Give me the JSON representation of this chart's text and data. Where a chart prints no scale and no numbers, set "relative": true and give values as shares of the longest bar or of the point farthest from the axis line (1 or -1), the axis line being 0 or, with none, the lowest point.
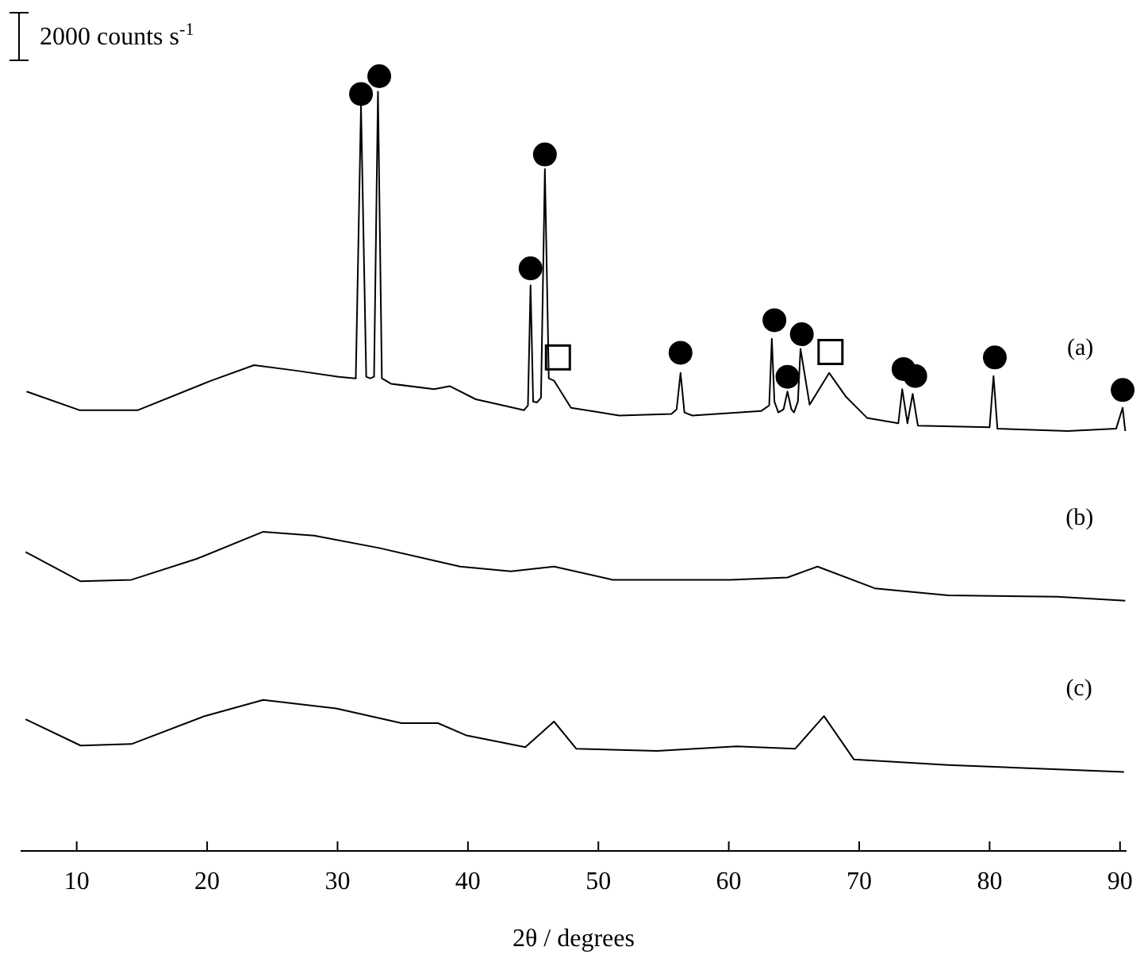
{
  "chart_data": {
    "type": "line",
    "relative": true,
    "xlabel": "2θ / degrees",
    "xlim": [
      5.7,
      90.5
    ],
    "xticks": [
      10,
      20,
      30,
      40,
      50,
      60,
      70,
      80,
      90
    ],
    "tick_labels": "x",
    "annotations": [
      "2000 counts s$^{-1}$"
    ],
    "series": [
      {
        "name": "(a)",
        "color": "#000000",
        "marker": "none",
        "x": [
          6.16,
          10.2,
          14.7,
          20.3,
          23.6,
          26.8,
          30.1,
          31.4,
          31.8,
          32.2,
          32.5,
          32.8,
          33.1,
          33.4,
          34.1,
          37.4,
          38.6,
          40.6,
          44.3,
          44.6,
          44.8,
          45.0,
          45.3,
          45.6,
          45.9,
          46.2,
          46.6,
          47.9,
          51.6,
          55.6,
          56.0,
          56.3,
          56.6,
          57.2,
          62.5,
          63.1,
          63.3,
          63.5,
          63.8,
          64.2,
          64.5,
          64.8,
          65.0,
          65.3,
          65.5,
          66.2,
          67.7,
          69.0,
          70.6,
          73.0,
          73.3,
          73.7,
          74.1,
          74.5,
          80.0,
          80.3,
          80.6,
          86.0,
          89.7,
          90.2,
          90.4
        ],
        "values": [
          0.593,
          0.569,
          0.569,
          0.607,
          0.627,
          0.62,
          0.612,
          0.61,
          0.962,
          0.612,
          0.61,
          0.612,
          0.98,
          0.61,
          0.603,
          0.596,
          0.6,
          0.583,
          0.569,
          0.575,
          0.73,
          0.58,
          0.579,
          0.585,
          0.88,
          0.61,
          0.607,
          0.572,
          0.562,
          0.564,
          0.57,
          0.617,
          0.566,
          0.562,
          0.568,
          0.575,
          0.661,
          0.58,
          0.566,
          0.57,
          0.593,
          0.57,
          0.566,
          0.58,
          0.648,
          0.576,
          0.617,
          0.586,
          0.559,
          0.552,
          0.596,
          0.552,
          0.59,
          0.549,
          0.547,
          0.613,
          0.545,
          0.542,
          0.545,
          0.572,
          0.542
        ]
      },
      {
        "name": "(b)",
        "color": "#000000",
        "marker": "none",
        "x": [
          6.08,
          10.3,
          14.2,
          19.2,
          24.3,
          28.2,
          33.2,
          39.4,
          43.3,
          46.6,
          51.1,
          60.1,
          64.5,
          66.8,
          71.2,
          76.8,
          85.2,
          90.4
        ],
        "values": [
          0.386,
          0.348,
          0.35,
          0.377,
          0.412,
          0.407,
          0.391,
          0.367,
          0.361,
          0.367,
          0.35,
          0.35,
          0.353,
          0.367,
          0.339,
          0.33,
          0.328,
          0.323
        ]
      },
      {
        "name": "(c)",
        "color": "#000000",
        "marker": "none",
        "x": [
          6.08,
          10.3,
          14.2,
          19.8,
          24.3,
          29.9,
          34.9,
          37.7,
          39.9,
          44.4,
          46.6,
          48.3,
          54.5,
          60.6,
          65.1,
          67.3,
          69.6,
          76.8,
          90.3
        ],
        "values": [
          0.17,
          0.136,
          0.138,
          0.174,
          0.195,
          0.184,
          0.165,
          0.165,
          0.149,
          0.134,
          0.167,
          0.132,
          0.129,
          0.135,
          0.132,
          0.174,
          0.118,
          0.111,
          0.102
        ]
      },
      {
        "type": "scatter",
        "color": "#000000",
        "marker": "circle",
        "x": [
          31.8,
          33.2,
          44.8,
          45.9,
          56.3,
          63.5,
          64.5,
          65.6,
          73.4,
          74.3,
          80.4,
          90.2
        ],
        "values": [
          0.977,
          1,
          0.752,
          0.899,
          0.643,
          0.685,
          0.612,
          0.667,
          0.622,
          0.613,
          0.637,
          0.595
        ]
      },
      {
        "type": "scatter",
        "color": "#000000",
        "marker": "square",
        "x": [
          46.9,
          67.8
        ],
        "values": [
          0.637,
          0.644
        ]
      }
    ]
  }
}
